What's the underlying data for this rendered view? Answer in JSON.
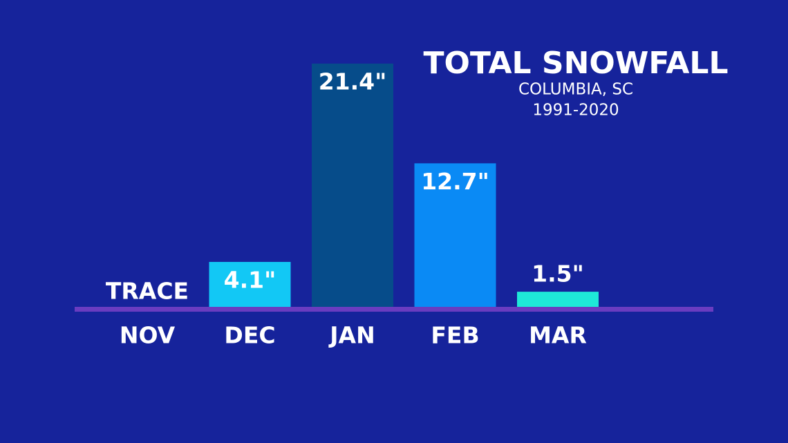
{
  "chart_data": {
    "type": "bar",
    "title": "TOTAL SNOWFALL",
    "subtitle": [
      "COLUMBIA, SC",
      "1991-2020"
    ],
    "categories": [
      "NOV",
      "DEC",
      "JAN",
      "FEB",
      "MAR"
    ],
    "values": [
      0,
      4.1,
      21.4,
      12.7,
      1.5
    ],
    "value_labels": [
      "TRACE",
      "4.1\"",
      "21.4\"",
      "12.7\"",
      "1.5\""
    ],
    "colors": [
      "#12c8f5",
      "#12c8f5",
      "#064c8a",
      "#0a8af5",
      "#1ee8d8"
    ]
  }
}
